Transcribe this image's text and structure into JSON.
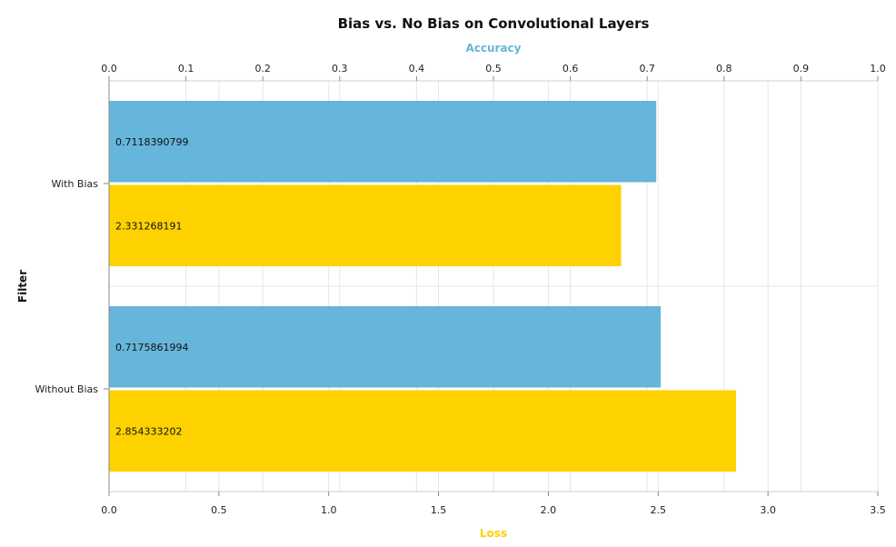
{
  "chart_data": {
    "type": "bar",
    "orientation": "horizontal",
    "title": "Bias vs. No Bias on Convolutional Layers",
    "ylabel": "Filter",
    "categories": [
      "With Bias",
      "Without Bias"
    ],
    "series": [
      {
        "name": "Accuracy",
        "axis": "top",
        "color": "#66b5db",
        "values": [
          0.7118390799,
          0.7175861994
        ],
        "value_labels": [
          "0.7118390799",
          "0.7175861994"
        ]
      },
      {
        "name": "Loss",
        "axis": "bottom",
        "color": "#fdd200",
        "values": [
          2.331268191,
          2.854333202
        ],
        "value_labels": [
          "2.331268191",
          "2.854333202"
        ]
      }
    ],
    "top_axis": {
      "label": "Accuracy",
      "range": [
        0,
        1.0
      ],
      "ticks": [
        0,
        0.1,
        0.2,
        0.3,
        0.4,
        0.5,
        0.6,
        0.7,
        0.8,
        0.9,
        1.0
      ],
      "tick_labels": [
        "0.0",
        "0.1",
        "0.2",
        "0.3",
        "0.4",
        "0.5",
        "0.6",
        "0.7",
        "0.8",
        "0.9",
        "1.0"
      ]
    },
    "bottom_axis": {
      "label": "Loss",
      "range": [
        0,
        3.5
      ],
      "ticks": [
        0,
        0.5,
        1.0,
        1.5,
        2.0,
        2.5,
        3.0,
        3.5
      ],
      "tick_labels": [
        "0.0",
        "0.5",
        "1.0",
        "1.5",
        "2.0",
        "2.5",
        "3.0",
        "3.5"
      ]
    },
    "grid": true,
    "legend": "none"
  }
}
